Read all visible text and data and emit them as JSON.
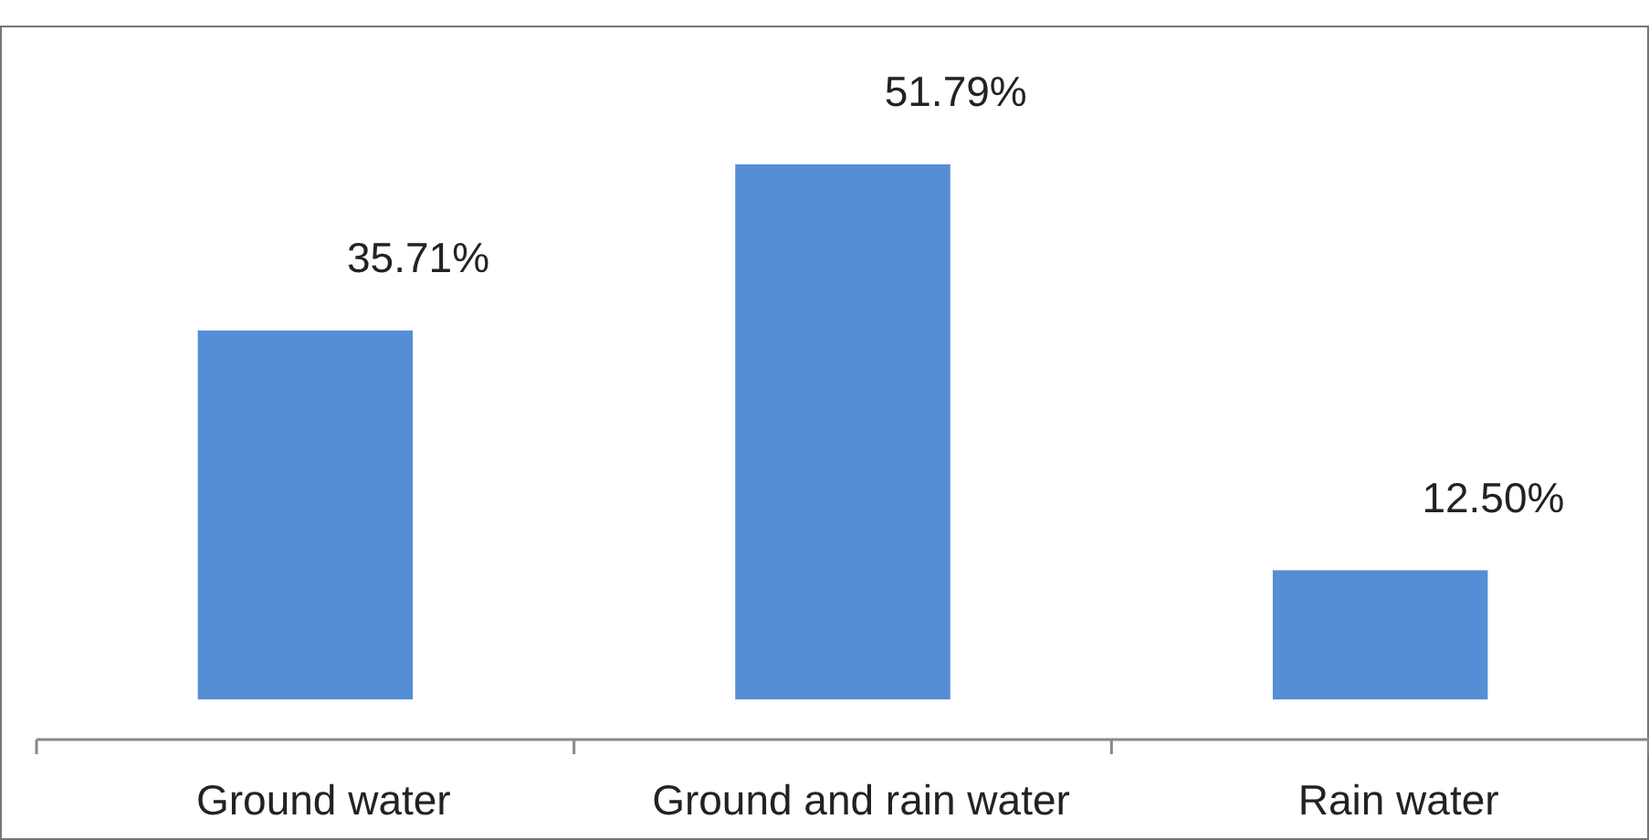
{
  "chart_data": {
    "type": "bar",
    "categories": [
      "Ground water",
      "Ground and rain water",
      "Rain water"
    ],
    "values": [
      35.71,
      51.79,
      12.5
    ],
    "value_labels": [
      "35.71%",
      "51.79%",
      "12.50%"
    ],
    "color": "#558ed5"
  }
}
